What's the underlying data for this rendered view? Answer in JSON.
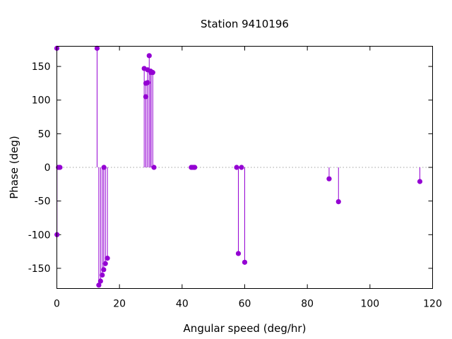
{
  "chart_data": {
    "type": "scatter",
    "style": "impulses",
    "title": "Station 9410196",
    "xlabel": "Angular speed (deg/hr)",
    "ylabel": "Phase (deg)",
    "xlim": [
      0,
      120
    ],
    "ylim": [
      -180,
      180
    ],
    "xticks": [
      0,
      20,
      40,
      60,
      80,
      100,
      120
    ],
    "yticks": [
      -150,
      -100,
      -50,
      0,
      50,
      100,
      150
    ],
    "grid": false,
    "zero_line": "dotted",
    "series": [
      {
        "color": "#9400d3",
        "points": [
          [
            0.0,
            177
          ],
          [
            0.04,
            -100
          ],
          [
            0.5,
            0
          ],
          [
            1.0,
            0
          ],
          [
            12.85,
            177
          ],
          [
            13.4,
            -175
          ],
          [
            13.95,
            -169
          ],
          [
            14.5,
            -160
          ],
          [
            14.96,
            -152
          ],
          [
            15.04,
            0
          ],
          [
            15.5,
            -143
          ],
          [
            16.14,
            -135
          ],
          [
            27.9,
            147
          ],
          [
            28.4,
            105
          ],
          [
            28.44,
            125
          ],
          [
            28.98,
            145
          ],
          [
            29.0,
            126
          ],
          [
            29.5,
            166
          ],
          [
            29.96,
            143
          ],
          [
            30.08,
            141
          ],
          [
            30.63,
            141
          ],
          [
            31.02,
            0
          ],
          [
            42.93,
            0
          ],
          [
            43.48,
            0
          ],
          [
            44.03,
            0
          ],
          [
            57.42,
            0
          ],
          [
            57.97,
            -128
          ],
          [
            58.98,
            0
          ],
          [
            60.0,
            -141
          ],
          [
            86.95,
            -17
          ],
          [
            89.95,
            -51
          ],
          [
            115.94,
            -21
          ]
        ]
      }
    ]
  }
}
